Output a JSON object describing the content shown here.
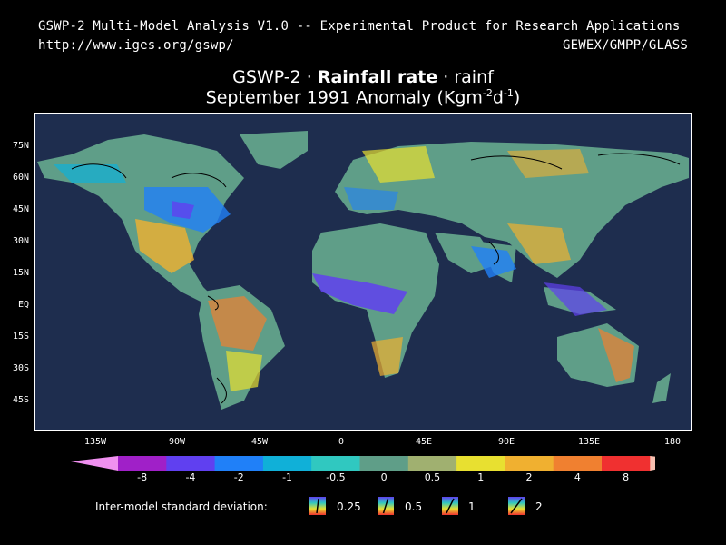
{
  "header": {
    "line1": "GSWP-2 Multi-Model Analysis V1.0 -- Experimental Product for Research Applications",
    "url": "http://www.iges.org/gswp/",
    "orgs": "GEWEX/GMPP/GLASS"
  },
  "title": {
    "prefix": "GSWP-2 · ",
    "bold": "Rainfall rate",
    "suffix": " · rainf",
    "line2_main": "September 1991 Anomaly (Kgm",
    "line2_sup1": "-2",
    "line2_mid": "d",
    "line2_sup2": "-1",
    "line2_end": ")"
  },
  "map": {
    "lat_labels": [
      "75N",
      "60N",
      "45N",
      "30N",
      "15N",
      "EQ",
      "15S",
      "30S",
      "45S"
    ],
    "lon_labels": [
      "135W",
      "90W",
      "45W",
      "0",
      "45E",
      "90E",
      "135E",
      "180"
    ],
    "ocean_color": "#1e2d4e",
    "neutral_land_color": "#5f9e88"
  },
  "legend": {
    "values": [
      "-8",
      "-4",
      "-2",
      "-1",
      "-0.5",
      "0",
      "0.5",
      "1",
      "2",
      "4",
      "8"
    ],
    "colors": [
      "#f090f0",
      "#a020c8",
      "#6040f0",
      "#2080f8",
      "#10b0d8",
      "#30c8c0",
      "#5f9e88",
      "#a0b070",
      "#e8e030",
      "#f0b030",
      "#f08030",
      "#f03030",
      "#f8c0b0"
    ]
  },
  "stddev": {
    "label": "Inter-model standard deviation:",
    "values": [
      "0.25",
      "0.5",
      "1",
      "2"
    ]
  }
}
